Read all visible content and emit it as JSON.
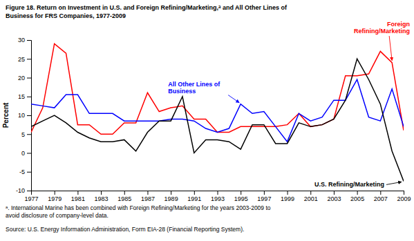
{
  "chart_data": {
    "type": "line",
    "title": "Figure 18.  Return on Investment in U.S. and Foreign Refining/Marketing,ᵃ and All Other Lines of\nBusiness for FRS Companies, 1977-2009",
    "ylabel": "Percent",
    "footnote": "ᵃ. International Marine has been combined with Foreign Refining/Marketing for the years 2003-2009 to\navoid disclosure of company-level data.",
    "source": "Source:  U.S. Energy Information Administration, Form EIA-28 (Financial Reporting System).",
    "x": [
      1977,
      1978,
      1979,
      1980,
      1981,
      1982,
      1983,
      1984,
      1985,
      1986,
      1987,
      1988,
      1989,
      1990,
      1991,
      1992,
      1993,
      1994,
      1995,
      1996,
      1997,
      1998,
      1999,
      2000,
      2001,
      2002,
      2003,
      2004,
      2005,
      2006,
      2007,
      2008,
      2009
    ],
    "xlim": [
      1977,
      2009
    ],
    "xticks": [
      1977,
      1979,
      1981,
      1983,
      1985,
      1987,
      1989,
      1991,
      1993,
      1995,
      1997,
      1999,
      2001,
      2003,
      2005,
      2007,
      2009
    ],
    "ylim": [
      -10,
      30
    ],
    "yticks": [
      -10,
      -5,
      0,
      5,
      10,
      15,
      20,
      25,
      30
    ],
    "grid": false,
    "series": [
      {
        "name": "Foreign\nRefining/Marketing",
        "color": "#ff0000",
        "values": [
          5.5,
          12.0,
          29.0,
          26.5,
          7.5,
          7.5,
          5.0,
          5.0,
          8.0,
          8.0,
          16.0,
          11.0,
          12.0,
          12.5,
          9.0,
          9.0,
          5.5,
          5.5,
          7.0,
          7.0,
          7.0,
          7.0,
          7.5,
          10.5,
          7.0,
          7.5,
          9.0,
          20.5,
          20.5,
          21.0,
          27.0,
          24.0,
          6.0
        ]
      },
      {
        "name": "All Other Lines of\nBusiness",
        "color": "#0000ff",
        "values": [
          13.0,
          12.5,
          12.0,
          15.5,
          15.5,
          10.5,
          10.5,
          10.5,
          8.5,
          8.5,
          8.5,
          8.5,
          9.0,
          9.0,
          8.5,
          6.5,
          5.5,
          6.5,
          13.0,
          10.5,
          11.0,
          7.0,
          3.0,
          10.5,
          8.5,
          9.5,
          14.0,
          14.0,
          19.5,
          9.5,
          8.5,
          17.0,
          7.0
        ]
      },
      {
        "name": "U.S. Refining/Marketing",
        "color": "#000000",
        "values": [
          7.0,
          8.5,
          10.0,
          8.0,
          5.5,
          4.0,
          3.0,
          3.0,
          3.5,
          0.5,
          5.5,
          8.5,
          8.5,
          15.0,
          0.0,
          3.5,
          3.5,
          3.0,
          1.0,
          7.5,
          7.5,
          2.5,
          2.5,
          8.0,
          7.0,
          7.5,
          9.0,
          14.0,
          25.0,
          19.5,
          13.0,
          0.5,
          -7.5
        ]
      }
    ]
  }
}
